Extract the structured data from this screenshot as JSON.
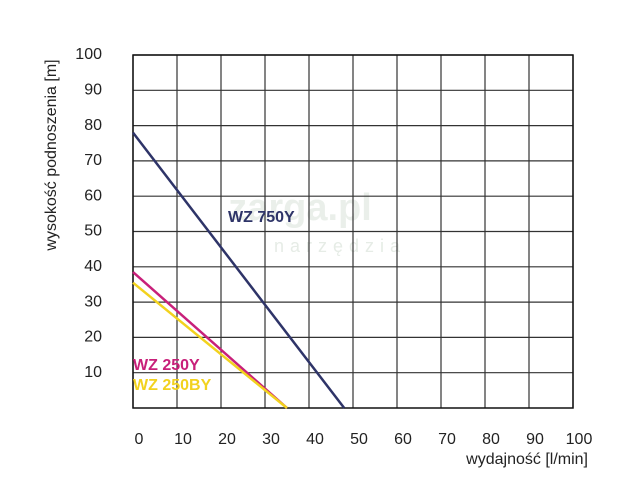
{
  "chart_data": {
    "type": "line",
    "xlabel": "wydajność [l/min]",
    "ylabel": "wysokość podnoszenia [m]",
    "watermark": [
      "zarga.pl",
      "narzędzia"
    ],
    "xlim": [
      0,
      100
    ],
    "xticks": [
      0,
      10,
      20,
      30,
      40,
      50,
      60,
      70,
      80,
      90,
      100
    ],
    "ylim": [
      0,
      100
    ],
    "yticks": [
      10,
      20,
      30,
      40,
      50,
      60,
      70,
      80,
      90,
      100
    ],
    "grid": true,
    "series": [
      {
        "name": "WZ 750Y",
        "color": "#2e3468",
        "x": [
          0,
          48
        ],
        "values": [
          78,
          0
        ]
      },
      {
        "name": "WZ 250Y",
        "color": "#c8207a",
        "x": [
          0,
          35
        ],
        "values": [
          38.5,
          0
        ]
      },
      {
        "name": "WZ 250BY",
        "color": "#f2d21e",
        "x": [
          0,
          35
        ],
        "values": [
          35.5,
          0
        ]
      }
    ]
  }
}
